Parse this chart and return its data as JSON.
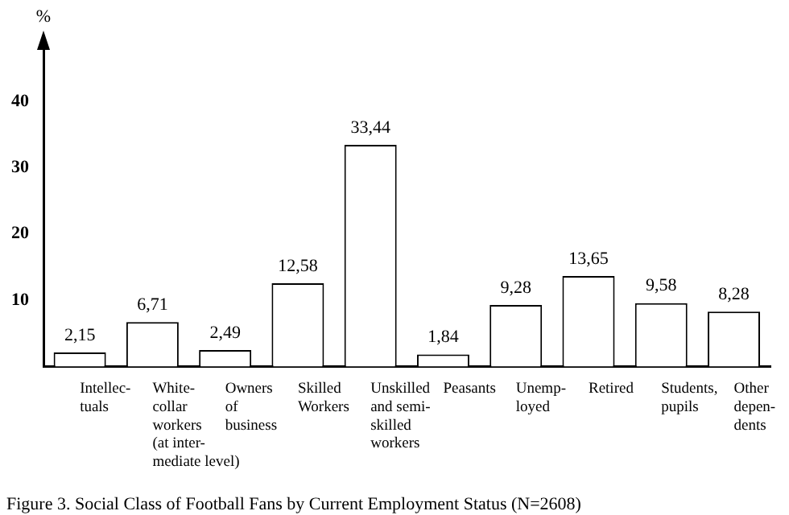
{
  "chart_data": {
    "type": "bar",
    "title": "Figure 3. Social Class of Football Fans by Current Employment Status (N=2608)",
    "ylabel": "%",
    "categories": [
      "Intellec-\ntuals",
      "White-\ncollar\nworkers\n(at inter-\nmediate level)",
      "Owners\nof\nbusiness",
      "Skilled\nWorkers",
      "Unskilled\nand semi-\nskilled\nworkers",
      "Peasants",
      "Unemp-\nloyed",
      "Retired",
      "Students,\npupils",
      "Other\ndepen-\ndents"
    ],
    "values": [
      2.15,
      6.71,
      2.49,
      12.58,
      33.44,
      1.84,
      9.28,
      13.65,
      9.58,
      8.28
    ],
    "value_labels": [
      "2,15",
      "6,71",
      "2,49",
      "12,58",
      "33,44",
      "1,84",
      "9,28",
      "13,65",
      "9,58",
      "8,28"
    ],
    "color": "#ffffff",
    "ylim": [
      0,
      48
    ],
    "yticks": [
      10,
      20,
      30,
      40
    ],
    "grid": false,
    "legend": false
  }
}
